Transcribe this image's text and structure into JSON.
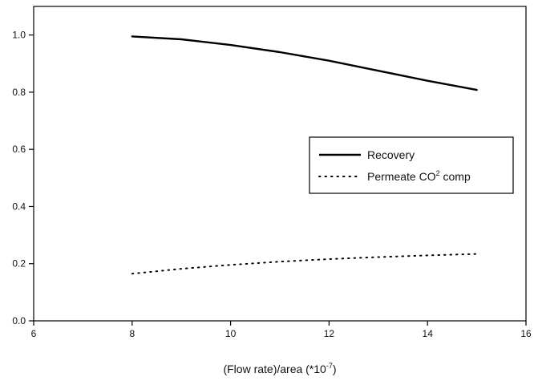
{
  "chart_data": {
    "type": "line",
    "xlabel_main": "(Flow rate)/area (*10",
    "xlabel_exp": "-7",
    "xlabel_close": ")",
    "ylabel": "",
    "title": "",
    "xlim": [
      6,
      16
    ],
    "ylim": [
      0.0,
      1.1
    ],
    "x_ticks": [
      6,
      8,
      10,
      12,
      14,
      16
    ],
    "x_tick_labels": [
      "6",
      "8",
      "10",
      "12",
      "14",
      "16"
    ],
    "y_ticks": [
      0.0,
      0.2,
      0.4,
      0.6,
      0.8,
      1.0
    ],
    "y_tick_labels": [
      "0.0",
      "0.2",
      "0.4",
      "0.6",
      "0.8",
      "1.0"
    ],
    "grid": false,
    "legend_position": "right-middle",
    "series": [
      {
        "name": "Recovery",
        "style": "solid",
        "color": "#000000",
        "x": [
          8,
          9,
          10,
          11,
          12,
          13,
          14,
          15
        ],
        "y": [
          0.995,
          0.985,
          0.965,
          0.94,
          0.91,
          0.875,
          0.84,
          0.808
        ]
      },
      {
        "name_prefix": "Permeate CO",
        "name_sup": "2",
        "name_suffix": " comp",
        "style": "dotted",
        "color": "#000000",
        "x": [
          8,
          9,
          10,
          11,
          12,
          13,
          14,
          15
        ],
        "y": [
          0.165,
          0.182,
          0.196,
          0.207,
          0.216,
          0.223,
          0.229,
          0.234
        ]
      }
    ]
  }
}
